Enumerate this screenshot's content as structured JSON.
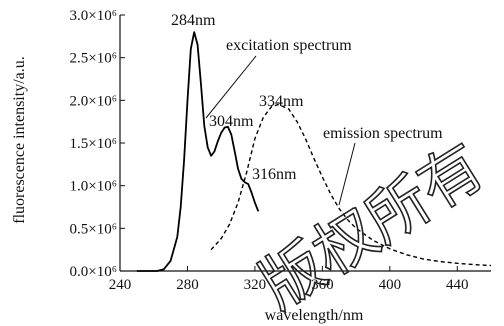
{
  "chart_data": {
    "type": "line",
    "xlabel": "wavelength/nm",
    "ylabel": "fluorescence intensity/a.u.",
    "xlim": [
      240,
      460
    ],
    "ylim": [
      0,
      3000000
    ],
    "x_ticks": [
      240,
      280,
      320,
      360,
      400,
      440
    ],
    "x_tick_labels": [
      "240",
      "280",
      "320",
      "360",
      "400",
      "440"
    ],
    "y_ticks": [
      0,
      500000,
      1000000,
      1500000,
      2000000,
      2500000,
      3000000
    ],
    "y_tick_labels": [
      "0.0×10⁶",
      "0.5×10⁶",
      "1.0×10⁶",
      "1.5×10⁶",
      "2.0×10⁶",
      "2.5×10⁶",
      "3.0×10⁶"
    ],
    "grid": false,
    "series": [
      {
        "name": "excitation spectrum",
        "style": "solid",
        "color": "#000000",
        "x": [
          250,
          262,
          266,
          270,
          274,
          276,
          278,
          280,
          282,
          284,
          286,
          288,
          290,
          292,
          294,
          296,
          298,
          300,
          302,
          304,
          306,
          308,
          310,
          312,
          314,
          316,
          318,
          320,
          322
        ],
        "y": [
          0,
          0,
          20000,
          120000,
          400000,
          750000,
          1300000,
          2000000,
          2600000,
          2800000,
          2650000,
          2200000,
          1700000,
          1450000,
          1350000,
          1400000,
          1520000,
          1620000,
          1680000,
          1690000,
          1600000,
          1400000,
          1200000,
          1080000,
          1040000,
          1020000,
          920000,
          800000,
          700000
        ]
      },
      {
        "name": "emission spectrum",
        "style": "dashed",
        "color": "#000000",
        "x": [
          294,
          300,
          305,
          310,
          315,
          320,
          325,
          330,
          334,
          340,
          345,
          350,
          355,
          360,
          365,
          370,
          375,
          380,
          390,
          400,
          410,
          420,
          430,
          440,
          450,
          460
        ],
        "y": [
          250000,
          380000,
          550000,
          800000,
          1150000,
          1550000,
          1800000,
          1930000,
          1950000,
          1900000,
          1750000,
          1550000,
          1320000,
          1100000,
          900000,
          730000,
          600000,
          500000,
          360000,
          260000,
          190000,
          140000,
          110000,
          90000,
          75000,
          65000
        ]
      }
    ],
    "annotations": [
      {
        "text": "284nm",
        "x": 284,
        "y": 2800000
      },
      {
        "text": "304nm",
        "x": 304,
        "y": 1690000
      },
      {
        "text": "316nm",
        "x": 316,
        "y": 1020000
      },
      {
        "text": "334nm",
        "x": 334,
        "y": 1950000
      },
      {
        "text": "excitation spectrum"
      },
      {
        "text": "emission spectrum"
      }
    ]
  },
  "watermark": "版权所有"
}
